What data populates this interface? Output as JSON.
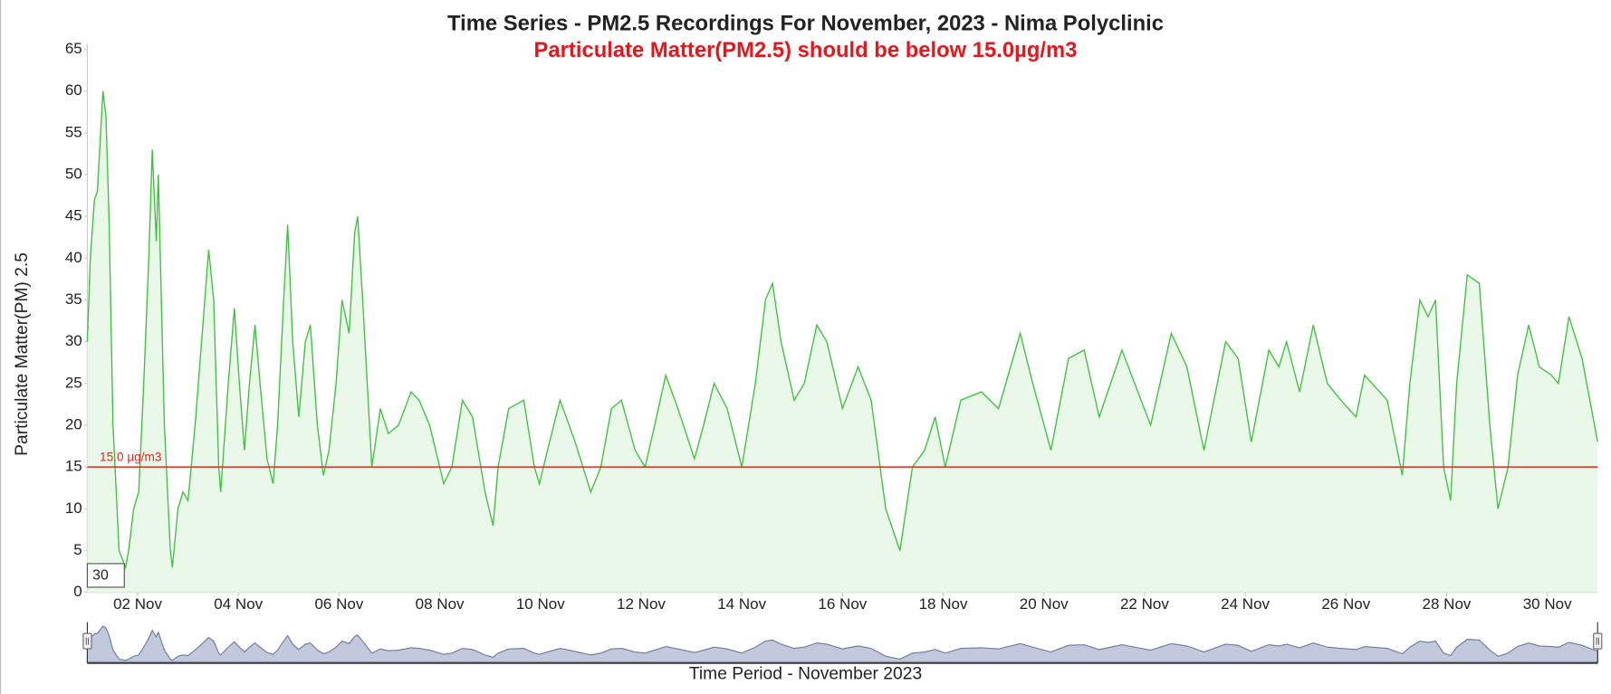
{
  "chart_data": {
    "type": "line",
    "title": "Time Series - PM2.5 Recordings For November, 2023 - Nima Polyclinic",
    "subtitle": "Particulate Matter(PM2.5) should be below 15.0µg/m3",
    "y_label": "Particulate Matter(PM) 2.5",
    "x_label": "Time Period - November 2023",
    "range_input": "30",
    "x": [
      1.0,
      1.06,
      1.14,
      1.2,
      1.31,
      1.37,
      1.43,
      1.51,
      1.63,
      1.76,
      1.82,
      1.92,
      2.02,
      2.12,
      2.22,
      2.29,
      2.37,
      2.41,
      2.53,
      2.65,
      2.69,
      2.8,
      2.9,
      3.0,
      3.14,
      3.27,
      3.41,
      3.51,
      3.61,
      3.65,
      3.8,
      3.92,
      4.02,
      4.12,
      4.22,
      4.33,
      4.43,
      4.57,
      4.69,
      4.78,
      4.9,
      4.98,
      5.08,
      5.2,
      5.33,
      5.43,
      5.57,
      5.69,
      5.8,
      5.94,
      6.06,
      6.2,
      6.31,
      6.37,
      6.47,
      6.65,
      6.82,
      6.98,
      7.18,
      7.43,
      7.59,
      7.8,
      8.08,
      8.24,
      8.45,
      8.65,
      8.9,
      9.06,
      9.16,
      9.37,
      9.67,
      9.88,
      9.98,
      10.14,
      10.39,
      10.69,
      11.0,
      11.2,
      11.41,
      11.61,
      11.88,
      12.08,
      12.27,
      12.49,
      12.73,
      13.06,
      13.24,
      13.45,
      13.71,
      14.0,
      14.27,
      14.47,
      14.61,
      14.78,
      15.04,
      15.24,
      15.49,
      15.69,
      16.0,
      16.31,
      16.57,
      16.86,
      17.14,
      17.39,
      17.63,
      17.84,
      18.04,
      18.35,
      18.76,
      19.1,
      19.53,
      19.78,
      20.14,
      20.49,
      20.8,
      21.1,
      21.55,
      22.12,
      22.53,
      22.84,
      23.18,
      23.61,
      23.86,
      24.12,
      24.47,
      24.67,
      24.82,
      25.08,
      25.35,
      25.63,
      25.9,
      26.2,
      26.37,
      26.82,
      27.12,
      27.27,
      27.47,
      27.63,
      27.78,
      27.94,
      28.08,
      28.2,
      28.41,
      28.65,
      28.86,
      29.02,
      29.22,
      29.41,
      29.63,
      29.84,
      30.08,
      30.22,
      30.43,
      30.69,
      31.0
    ],
    "series": [
      {
        "name": "PM2.5",
        "color": "#3cc43c",
        "fill": "#e9f8e9",
        "values": [
          30,
          40,
          47,
          48,
          60,
          57,
          45,
          20,
          5,
          3,
          5,
          10,
          12,
          25,
          40,
          53,
          42,
          50,
          20,
          5,
          3,
          10,
          12,
          11,
          20,
          30,
          41,
          35,
          15,
          12,
          25,
          34,
          25,
          17,
          25,
          32,
          25,
          16,
          13,
          20,
          35,
          44,
          30,
          21,
          30,
          32,
          20,
          14,
          17,
          25,
          35,
          31,
          43,
          45,
          35,
          15,
          22,
          19,
          20,
          24,
          23,
          20,
          13,
          15,
          23,
          21,
          12,
          8,
          15,
          22,
          23,
          15,
          13,
          17,
          23,
          18,
          12,
          15,
          22,
          23,
          17,
          15,
          20,
          26,
          22,
          16,
          20,
          25,
          22,
          15,
          25,
          35,
          37,
          30,
          23,
          25,
          32,
          30,
          22,
          27,
          23,
          10,
          5,
          15,
          17,
          21,
          15,
          23,
          24,
          22,
          31,
          25,
          17,
          28,
          29,
          21,
          29,
          20,
          31,
          27,
          17,
          30,
          28,
          18,
          29,
          27,
          30,
          24,
          32,
          25,
          23,
          21,
          26,
          23,
          14,
          25,
          35,
          33,
          35,
          15,
          11,
          25,
          38,
          37,
          20,
          10,
          15,
          26,
          32,
          27,
          26,
          25,
          33,
          28,
          18
        ]
      }
    ],
    "threshold": {
      "value": 15,
      "label": "15.0 µg/m3",
      "color": "#e0281e"
    },
    "xlim": [
      1,
      31
    ],
    "xticks": [
      {
        "value": 2,
        "label": "02 Nov"
      },
      {
        "value": 4,
        "label": "04 Nov"
      },
      {
        "value": 6,
        "label": "06 Nov"
      },
      {
        "value": 8,
        "label": "08 Nov"
      },
      {
        "value": 10,
        "label": "10 Nov"
      },
      {
        "value": 12,
        "label": "12 Nov"
      },
      {
        "value": 14,
        "label": "14 Nov"
      },
      {
        "value": 16,
        "label": "16 Nov"
      },
      {
        "value": 18,
        "label": "18 Nov"
      },
      {
        "value": 20,
        "label": "20 Nov"
      },
      {
        "value": 22,
        "label": "22 Nov"
      },
      {
        "value": 24,
        "label": "24 Nov"
      },
      {
        "value": 26,
        "label": "26 Nov"
      },
      {
        "value": 28,
        "label": "28 Nov"
      },
      {
        "value": 30,
        "label": "30 Nov"
      }
    ],
    "ylim": [
      0,
      65
    ],
    "yticks": [
      0,
      5,
      10,
      15,
      20,
      25,
      30,
      35,
      40,
      45,
      50,
      55,
      60,
      65
    ],
    "grid": false
  }
}
